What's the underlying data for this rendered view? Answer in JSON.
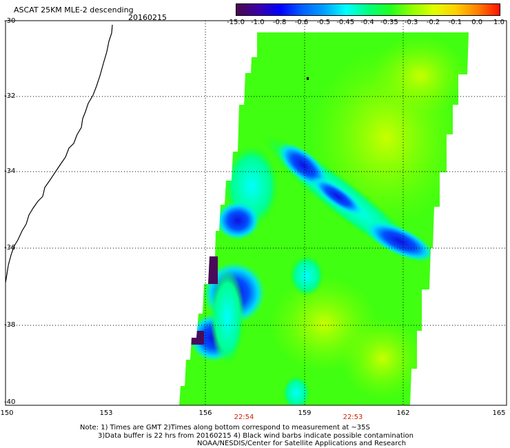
{
  "title": "ASCAT 25KM MLE-2 descending",
  "date": "20160215",
  "colorbar": {
    "labels": [
      "-15.0",
      "-1.0",
      "-0.8",
      "-0.6",
      "-0.5",
      "-0.45",
      "-0.4",
      "-0.35",
      "-0.3",
      "-0.2",
      "-0.1",
      "0.0",
      "1.0"
    ],
    "colors": [
      "#4a0a4a",
      "#3a00a8",
      "#0000ff",
      "#0060ff",
      "#00a0ff",
      "#00ffff",
      "#00ff80",
      "#20ff20",
      "#90ff00",
      "#e0ff00",
      "#ffd000",
      "#ff8000",
      "#ff1000"
    ]
  },
  "lat_labels": [
    "-30",
    "-32",
    "-34",
    "-36",
    "-38",
    "-40"
  ],
  "lon_labels": [
    "150",
    "153",
    "156",
    "159",
    "162",
    "165"
  ],
  "pass_times": [
    "22:54",
    "22:53"
  ],
  "notes": [
    "Note: 1) Times are GMT 2)Times along bottom correspond to measurement at ~35S",
    "3)Data buffer is 22 hrs from 20160215 4) Black wind barbs indicate possible contamination",
    "NOAA/NESDIS/Center for Satellite Applications and Research"
  ]
}
